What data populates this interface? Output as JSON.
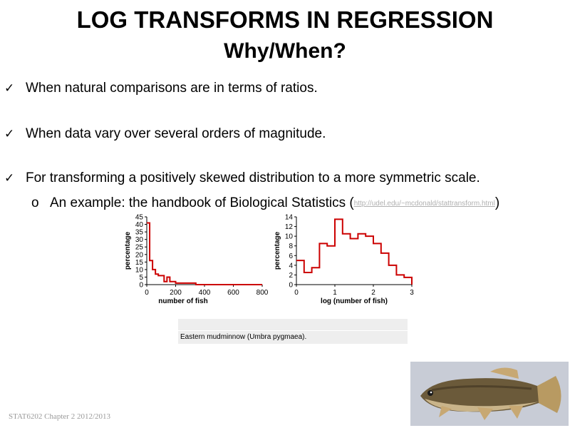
{
  "slide": {
    "title_line1": "LOG TRANSFORMS IN REGRESSION",
    "title_line2": "Why/When?",
    "bullets": [
      "When natural comparisons are in terms of ratios.",
      "When data vary over several orders of magnitude.",
      "For transforming a positively skewed distribution to a more symmetric scale."
    ],
    "check_icon": "check-icon",
    "subbullet_marker": "o",
    "subbullet_text": "An example: the handbook of Biological Statistics (",
    "subbullet_link": "http://udel.edu/~mcdonald/stattransform.html",
    "subbullet_close": ")",
    "caption": "Eastern mudminnow (Umbra pygmaea).",
    "footer": "STAT6202 Chapter 2 2012/2013"
  },
  "chart_data": [
    {
      "type": "histogram",
      "xlabel": "number of fish",
      "ylabel": "percentage",
      "x_ticks": [
        0,
        200,
        400,
        600,
        800
      ],
      "y_ticks": [
        0,
        5,
        10,
        15,
        20,
        25,
        30,
        35,
        40,
        45
      ],
      "xlim": [
        0,
        800
      ],
      "ylim": [
        0,
        45
      ],
      "bin_width": 20,
      "x_start": 0,
      "values": [
        41,
        16,
        10,
        7,
        6,
        6,
        2,
        5,
        2,
        2,
        1,
        1,
        1,
        1,
        1,
        1,
        1,
        0,
        0,
        0,
        0,
        0,
        0,
        0,
        0,
        0,
        0,
        0,
        0,
        0,
        0,
        0,
        0,
        0,
        0,
        0,
        0,
        0,
        0,
        0
      ],
      "line_color": "#cc0000"
    },
    {
      "type": "histogram",
      "xlabel": "log (number of fish)",
      "ylabel": "percentage",
      "x_ticks": [
        0,
        1,
        2,
        3
      ],
      "y_ticks": [
        0,
        2,
        4,
        6,
        8,
        10,
        12,
        14
      ],
      "xlim": [
        0,
        3
      ],
      "ylim": [
        0,
        14
      ],
      "bin_width": 0.2,
      "x_start": 0,
      "values": [
        5,
        2.5,
        3.5,
        8.5,
        8,
        13.5,
        10.5,
        9.5,
        10.5,
        10,
        8.5,
        6.5,
        4,
        2,
        1.5
      ],
      "line_color": "#cc0000"
    }
  ]
}
